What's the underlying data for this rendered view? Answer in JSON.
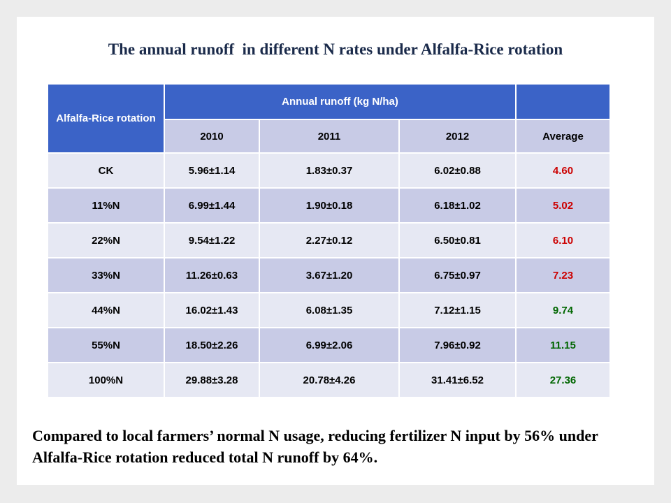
{
  "slide": {
    "title": "The annual runoff  in different N rates under Alfalfa-Rice rotation",
    "note": "Compared to local farmers’ normal N usage, reducing fertilizer N input by 56% under Alfalfa-Rice rotation reduced total N runoff by 64%."
  },
  "table": {
    "corner_header": "Alfalfa-Rice rotation",
    "group_header": "Annual runoff (kg N/ha)",
    "blank_header": "",
    "columns": [
      "2010",
      "2011",
      "2012",
      "Average"
    ],
    "rows": [
      {
        "label": "CK",
        "v2010": "5.96±1.14",
        "v2011": "1.83±0.37",
        "v2012": "6.02±0.88",
        "average": "4.60",
        "average_color": "#cc0000"
      },
      {
        "label": "11%N",
        "v2010": "6.99±1.44",
        "v2011": "1.90±0.18",
        "v2012": "6.18±1.02",
        "average": "5.02",
        "average_color": "#cc0000"
      },
      {
        "label": "22%N",
        "v2010": "9.54±1.22",
        "v2011": "2.27±0.12",
        "v2012": "6.50±0.81",
        "average": "6.10",
        "average_color": "#cc0000"
      },
      {
        "label": "33%N",
        "v2010": "11.26±0.63",
        "v2011": "3.67±1.20",
        "v2012": "6.75±0.97",
        "average": "7.23",
        "average_color": "#cc0000"
      },
      {
        "label": "44%N",
        "v2010": "16.02±1.43",
        "v2011": "6.08±1.35",
        "v2012": "7.12±1.15",
        "average": "9.74",
        "average_color": "#006600"
      },
      {
        "label": "55%N",
        "v2010": "18.50±2.26",
        "v2011": "6.99±2.06",
        "v2012": "7.96±0.92",
        "average": "11.15",
        "average_color": "#006600"
      },
      {
        "label": "100%N",
        "v2010": "29.88±3.28",
        "v2011": "20.78±4.26",
        "v2012": "31.41±6.52",
        "average": "27.36",
        "average_color": "#006600"
      }
    ]
  },
  "colors": {
    "header_blue": "#3b63c7",
    "row_light": "#e6e8f3",
    "row_dark": "#c8cbe6",
    "average_red": "#cc0000",
    "average_green": "#006600"
  }
}
